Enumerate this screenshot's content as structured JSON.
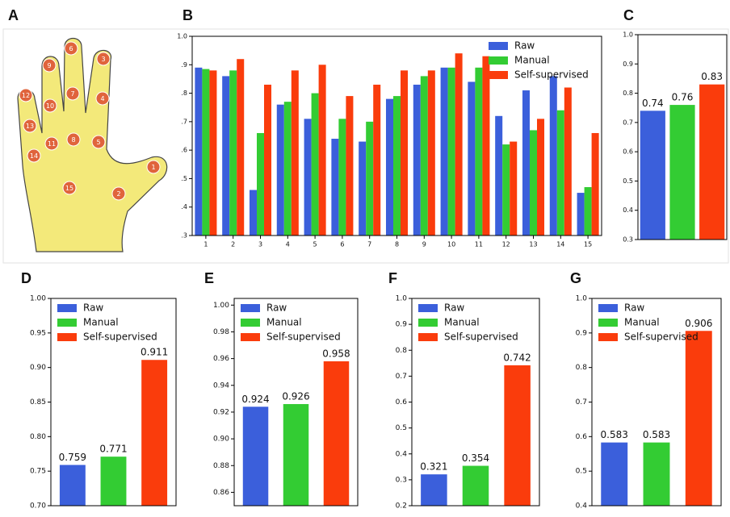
{
  "diagram": {
    "panel": "A",
    "labels": [
      "1",
      "2",
      "3",
      "4",
      "5",
      "6",
      "7",
      "8",
      "9",
      "10",
      "11",
      "12",
      "13",
      "14",
      "15"
    ]
  },
  "chart_data": [
    {
      "type": "bar",
      "panel": "B",
      "categories": [
        "1",
        "2",
        "3",
        "4",
        "5",
        "6",
        "7",
        "8",
        "9",
        "10",
        "11",
        "12",
        "13",
        "14",
        "15"
      ],
      "series": [
        {
          "name": "Raw",
          "color": "#3b5fdb",
          "values": [
            0.89,
            0.86,
            0.46,
            0.76,
            0.71,
            0.64,
            0.63,
            0.78,
            0.83,
            0.89,
            0.84,
            0.72,
            0.81,
            0.86,
            0.45
          ]
        },
        {
          "name": "Manual",
          "color": "#33cc33",
          "values": [
            0.885,
            0.88,
            0.66,
            0.77,
            0.8,
            0.71,
            0.7,
            0.79,
            0.86,
            0.89,
            0.89,
            0.62,
            0.67,
            0.74,
            0.47
          ]
        },
        {
          "name": "Self-supervised",
          "color": "#fa3c0c",
          "values": [
            0.88,
            0.92,
            0.83,
            0.88,
            0.9,
            0.79,
            0.83,
            0.88,
            0.88,
            0.94,
            0.93,
            0.63,
            0.71,
            0.82,
            0.66
          ]
        }
      ],
      "ylim": [
        0.3,
        1.0
      ],
      "yticks": [
        {
          "value": 0.3,
          "label": ".3"
        },
        {
          "value": 0.4,
          "label": ".4"
        },
        {
          "value": 0.5,
          "label": ".5"
        },
        {
          "value": 0.6,
          "label": ".6"
        },
        {
          "value": 0.7,
          "label": ".7"
        },
        {
          "value": 0.8,
          "label": ".8"
        },
        {
          "value": 0.9,
          "label": ".9"
        },
        {
          "value": 1.0,
          "label": "1.0"
        }
      ],
      "legend": "upper right"
    },
    {
      "type": "bar",
      "panel": "C",
      "values": [
        0.74,
        0.76,
        0.83
      ],
      "colors": [
        "#3b5fdb",
        "#33cc33",
        "#fa3c0c"
      ],
      "ylim": [
        0.3,
        1.0
      ],
      "yticks": [
        0.3,
        0.4,
        0.5,
        0.6,
        0.7,
        0.8,
        0.9,
        {
          "value": 1.0,
          "label": "1.0"
        }
      ],
      "data_labels": true
    },
    {
      "type": "bar",
      "panel": "D",
      "series": [
        {
          "name": "Raw",
          "color": "#3b5fdb",
          "values": [
            0.759
          ]
        },
        {
          "name": "Manual",
          "color": "#33cc33",
          "values": [
            0.771
          ]
        },
        {
          "name": "Self-supervised",
          "color": "#fa3c0c",
          "values": [
            0.911
          ]
        }
      ],
      "ylim": [
        0.7,
        1.0
      ],
      "yticks": [
        {
          "value": 0.7,
          "label": "0.70"
        },
        {
          "value": 0.75,
          "label": "0.75"
        },
        {
          "value": 0.8,
          "label": "0.80"
        },
        {
          "value": 0.85,
          "label": "0.85"
        },
        {
          "value": 0.9,
          "label": "0.90"
        },
        {
          "value": 0.95,
          "label": "0.95"
        },
        {
          "value": 1.0,
          "label": "1.00"
        }
      ],
      "legend": "upper left",
      "data_labels": true
    },
    {
      "type": "bar",
      "panel": "E",
      "series": [
        {
          "name": "Raw",
          "color": "#3b5fdb",
          "values": [
            0.924
          ]
        },
        {
          "name": "Manual",
          "color": "#33cc33",
          "values": [
            0.926
          ]
        },
        {
          "name": "Self-supervised",
          "color": "#fa3c0c",
          "values": [
            0.958
          ]
        }
      ],
      "ylim": [
        0.85,
        1.005
      ],
      "yticks": [
        0.86,
        0.88,
        {
          "value": 0.9,
          "label": "0.90"
        },
        0.92,
        0.94,
        0.96,
        0.98,
        {
          "value": 1.0,
          "label": "1.00"
        }
      ],
      "legend": "upper left",
      "data_labels": true
    },
    {
      "type": "bar",
      "panel": "F",
      "series": [
        {
          "name": "Raw",
          "color": "#3b5fdb",
          "values": [
            0.321
          ]
        },
        {
          "name": "Manual",
          "color": "#33cc33",
          "values": [
            0.354
          ]
        },
        {
          "name": "Self-supervised",
          "color": "#fa3c0c",
          "values": [
            0.742
          ]
        }
      ],
      "ylim": [
        0.2,
        1.0
      ],
      "yticks": [
        0.2,
        0.3,
        0.4,
        0.5,
        0.6,
        0.7,
        0.8,
        0.9,
        {
          "value": 1.0,
          "label": "1.0"
        }
      ],
      "legend": "upper left",
      "data_labels": true
    },
    {
      "type": "bar",
      "panel": "G",
      "series": [
        {
          "name": "Raw",
          "color": "#3b5fdb",
          "values": [
            0.583
          ]
        },
        {
          "name": "Manual",
          "color": "#33cc33",
          "values": [
            0.583
          ]
        },
        {
          "name": "Self-supervised",
          "color": "#fa3c0c",
          "values": [
            0.906
          ]
        }
      ],
      "ylim": [
        0.4,
        1.0
      ],
      "yticks": [
        0.4,
        0.5,
        0.6,
        0.7,
        0.8,
        0.9,
        {
          "value": 1.0,
          "label": "1.0"
        }
      ],
      "legend": "upper left",
      "data_labels": true
    }
  ]
}
